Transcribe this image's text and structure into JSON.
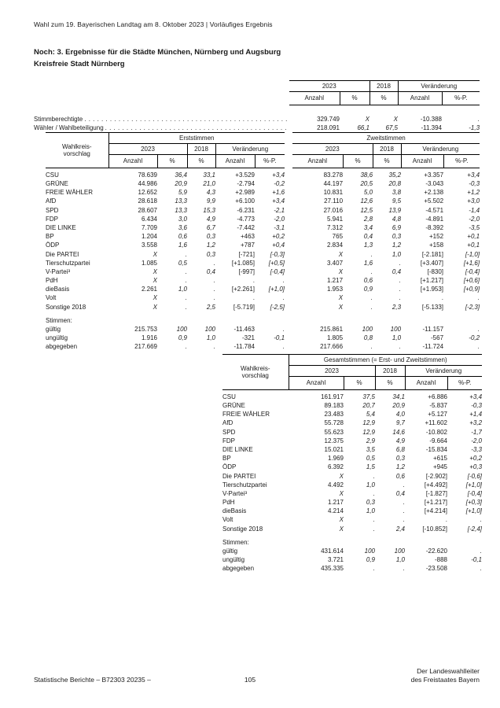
{
  "page": {
    "header": "Wahl zum 19. Bayerischen Landtag am 8. Oktober 2023 | Vorläufiges Ergebnis",
    "title_line1": "Noch: 3. Ergebnisse für die Städte München, Nürnberg und Augsburg",
    "title_line2": "Kreisfreie Stadt Nürnberg",
    "footer": {
      "left": "Statistische Berichte – B72303 20235 –",
      "page_number": "105",
      "right_line1": "Der Landeswahlleiter",
      "right_line2": "des Freistaates Bayern"
    },
    "colors": {
      "text": "#1a1a1a",
      "background": "#ffffff",
      "rule": "#000000"
    }
  },
  "labels": {
    "y2023": "2023",
    "y2018": "2018",
    "change": "Veränderung",
    "anzahl": "Anzahl",
    "pct": "%",
    "pctp": "%-P.",
    "stub_line1": "Wahlkreis-",
    "stub_line2": "vorschlag",
    "stimmen": "Stimmen:"
  },
  "summary_table": {
    "rows": [
      {
        "label": "Stimmberechtigte",
        "values": [
          "329.749",
          "X",
          "X",
          "-10.388",
          "."
        ]
      },
      {
        "label": "Wähler / Wahlbeteiligung",
        "values": [
          "218.091",
          "66,1",
          "67,5",
          "-11.394",
          "-1,3"
        ]
      }
    ]
  },
  "main_table": {
    "group_erst": "Erststimmen",
    "group_zweit": "Zweitstimmen",
    "rows": [
      {
        "label": "CSU",
        "erst": [
          "78.639",
          "36,4",
          "33,1",
          "+3.529",
          "+3,4"
        ],
        "zweit": [
          "83.278",
          "38,6",
          "35,2",
          "+3.357",
          "+3,4"
        ]
      },
      {
        "label": "GRÜNE",
        "erst": [
          "44.986",
          "20,9",
          "21,0",
          "-2.794",
          "-0,2"
        ],
        "zweit": [
          "44.197",
          "20,5",
          "20,8",
          "-3.043",
          "-0,3"
        ]
      },
      {
        "label": "FREIE WÄHLER",
        "erst": [
          "12.652",
          "5,9",
          "4,3",
          "+2.989",
          "+1,6"
        ],
        "zweit": [
          "10.831",
          "5,0",
          "3,8",
          "+2.138",
          "+1,2"
        ]
      },
      {
        "label": "AfD",
        "erst": [
          "28.618",
          "13,3",
          "9,9",
          "+6.100",
          "+3,4"
        ],
        "zweit": [
          "27.110",
          "12,6",
          "9,5",
          "+5.502",
          "+3,0"
        ]
      },
      {
        "label": "SPD",
        "erst": [
          "28.607",
          "13,3",
          "15,3",
          "-6.231",
          "-2,1"
        ],
        "zweit": [
          "27.016",
          "12,5",
          "13,9",
          "-4.571",
          "-1,4"
        ]
      },
      {
        "label": "FDP",
        "erst": [
          "6.434",
          "3,0",
          "4,9",
          "-4.773",
          "-2,0"
        ],
        "zweit": [
          "5.941",
          "2,8",
          "4,8",
          "-4.891",
          "-2,0"
        ]
      },
      {
        "label": "DIE LINKE",
        "erst": [
          "7.709",
          "3,6",
          "6,7",
          "-7.442",
          "-3,1"
        ],
        "zweit": [
          "7.312",
          "3,4",
          "6,9",
          "-8.392",
          "-3,5"
        ]
      },
      {
        "label": "BP",
        "erst": [
          "1.204",
          "0,6",
          "0,3",
          "+463",
          "+0,2"
        ],
        "zweit": [
          "765",
          "0,4",
          "0,3",
          "+152",
          "+0,1"
        ]
      },
      {
        "label": "ÖDP",
        "erst": [
          "3.558",
          "1,6",
          "1,2",
          "+787",
          "+0,4"
        ],
        "zweit": [
          "2.834",
          "1,3",
          "1,2",
          "+158",
          "+0,1"
        ]
      },
      {
        "label": "Die PARTEI",
        "erst": [
          "X",
          ".",
          "0,3",
          "[-721]",
          "[-0,3]"
        ],
        "zweit": [
          "X",
          ".",
          "1,0",
          "[-2.181]",
          "[-1,0]"
        ]
      },
      {
        "label": "Tierschutzpartei",
        "erst": [
          "1.085",
          "0,5",
          ".",
          "[+1.085]",
          "[+0,5]"
        ],
        "zweit": [
          "3.407",
          "1,6",
          ".",
          "[+3.407]",
          "[+1,6]"
        ]
      },
      {
        "label": "V-Partei³",
        "erst": [
          "X",
          ".",
          "0,4",
          "[-997]",
          "[-0,4]"
        ],
        "zweit": [
          "X",
          ".",
          "0,4",
          "[-830]",
          "[-0,4]"
        ]
      },
      {
        "label": "PdH",
        "erst": [
          "X",
          ".",
          ".",
          ".",
          "."
        ],
        "zweit": [
          "1.217",
          "0,6",
          ".",
          "[+1.217]",
          "[+0,6]"
        ]
      },
      {
        "label": "dieBasis",
        "erst": [
          "2.261",
          "1,0",
          ".",
          "[+2.261]",
          "[+1,0]"
        ],
        "zweit": [
          "1.953",
          "0,9",
          ".",
          "[+1.953]",
          "[+0,9]"
        ]
      },
      {
        "label": "Volt",
        "erst": [
          "X",
          ".",
          ".",
          ".",
          "."
        ],
        "zweit": [
          "X",
          ".",
          ".",
          ".",
          "."
        ]
      },
      {
        "label": "Sonstige 2018",
        "erst": [
          "X",
          ".",
          "2,5",
          "[-5.719]",
          "[-2,5]"
        ],
        "zweit": [
          "X",
          ".",
          "2,3",
          "[-5.133]",
          "[-2,3]"
        ]
      }
    ],
    "stimmen_rows": [
      {
        "label": "gültig",
        "erst": [
          "215.753",
          "100",
          "100",
          "-11.463",
          "."
        ],
        "zweit": [
          "215.861",
          "100",
          "100",
          "-11.157",
          "."
        ]
      },
      {
        "label": "ungültig",
        "erst": [
          "1.916",
          "0,9",
          "1,0",
          "-321",
          "-0,1"
        ],
        "zweit": [
          "1.805",
          "0,8",
          "1,0",
          "-567",
          "-0,2"
        ]
      },
      {
        "label": "abgegeben",
        "erst": [
          "217.669",
          ".",
          ".",
          "-11.784",
          "."
        ],
        "zweit": [
          "217.666",
          ".",
          ".",
          "-11.724",
          "."
        ]
      }
    ]
  },
  "total_table": {
    "group_title": "Gesamtstimmen (= Erst- und Zweitstimmen)",
    "rows": [
      {
        "label": "CSU",
        "values": [
          "161.917",
          "37,5",
          "34,1",
          "+6.886",
          "+3,4"
        ]
      },
      {
        "label": "GRÜNE",
        "values": [
          "89.183",
          "20,7",
          "20,9",
          "-5.837",
          "-0,3"
        ]
      },
      {
        "label": "FREIE WÄHLER",
        "values": [
          "23.483",
          "5,4",
          "4,0",
          "+5.127",
          "+1,4"
        ]
      },
      {
        "label": "AfD",
        "values": [
          "55.728",
          "12,9",
          "9,7",
          "+11.602",
          "+3,2"
        ]
      },
      {
        "label": "SPD",
        "values": [
          "55.623",
          "12,9",
          "14,6",
          "-10.802",
          "-1,7"
        ]
      },
      {
        "label": "FDP",
        "values": [
          "12.375",
          "2,9",
          "4,9",
          "-9.664",
          "-2,0"
        ]
      },
      {
        "label": "DIE LINKE",
        "values": [
          "15.021",
          "3,5",
          "6,8",
          "-15.834",
          "-3,3"
        ]
      },
      {
        "label": "BP",
        "values": [
          "1.969",
          "0,5",
          "0,3",
          "+615",
          "+0,2"
        ]
      },
      {
        "label": "ÖDP",
        "values": [
          "6.392",
          "1,5",
          "1,2",
          "+945",
          "+0,3"
        ]
      },
      {
        "label": "Die PARTEI",
        "values": [
          "X",
          ".",
          "0,6",
          "[-2.902]",
          "[-0,6]"
        ]
      },
      {
        "label": "Tierschutzpartei",
        "values": [
          "4.492",
          "1,0",
          ".",
          "[+4.492]",
          "[+1,0]"
        ]
      },
      {
        "label": "V-Partei³",
        "values": [
          "X",
          ".",
          "0,4",
          "[-1.827]",
          "[-0,4]"
        ]
      },
      {
        "label": "PdH",
        "values": [
          "1.217",
          "0,3",
          ".",
          "[+1.217]",
          "[+0,3]"
        ]
      },
      {
        "label": "dieBasis",
        "values": [
          "4.214",
          "1,0",
          ".",
          "[+4.214]",
          "[+1,0]"
        ]
      },
      {
        "label": "Volt",
        "values": [
          "X",
          ".",
          ".",
          ".",
          "."
        ]
      },
      {
        "label": "Sonstige 2018",
        "values": [
          "X",
          ".",
          "2,4",
          "[-10.852]",
          "[-2,4]"
        ]
      }
    ],
    "stimmen_rows": [
      {
        "label": "gültig",
        "values": [
          "431.614",
          "100",
          "100",
          "-22.620",
          "."
        ]
      },
      {
        "label": "ungültig",
        "values": [
          "3.721",
          "0,9",
          "1,0",
          "-888",
          "-0,1"
        ]
      },
      {
        "label": "abgegeben",
        "values": [
          "435.335",
          ".",
          ".",
          "-23.508",
          "."
        ]
      }
    ]
  }
}
